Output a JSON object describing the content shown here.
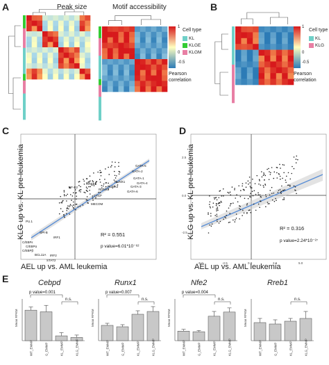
{
  "panels": {
    "A": "A",
    "B": "B",
    "C": "C",
    "D": "D",
    "E": "E"
  },
  "panel_a": {
    "titles": [
      "Peak size",
      "Motif accessibility"
    ]
  },
  "legend_a": {
    "scale_ticks": [
      "1",
      "0",
      "-0.5"
    ],
    "scale_label_1": "Pearson",
    "scale_label_2": "correlation",
    "cell_type_title": "Cell type",
    "cell_types": [
      {
        "label": "KL",
        "color": "#6fd0c8"
      },
      {
        "label": "KLGE",
        "color": "#33cc33"
      },
      {
        "label": "KLGM",
        "color": "#e87fa4"
      }
    ]
  },
  "legend_b": {
    "scale_ticks": [
      "1",
      "0",
      "-0.5"
    ],
    "scale_label_1": "Pearson",
    "scale_label_2": "correlation",
    "cell_type_title": "Cell type",
    "cell_types": [
      {
        "label": "KL",
        "color": "#6fd0c8"
      },
      {
        "label": "KLG",
        "color": "#e87fa4"
      }
    ]
  },
  "chart_data": [
    {
      "panel": "C",
      "type": "scatter",
      "xlabel": "AEL up vs. AML leukemia",
      "ylabel": "KLG up vs. KL pre-leukemia",
      "point_labels": [
        "GATA-5",
        "GATA-2",
        "GATA-1",
        "RUNX1",
        "GATA-4",
        "RUNX2",
        "GATA-3",
        "RUNX3",
        "GATA-6",
        "RREB1",
        "NF-E2",
        "CTCF",
        "MECOM",
        "PU.1",
        "SPI-B",
        "IRF1",
        "C/EBPε",
        "C/EBPα",
        "C/EBPβ",
        "BCL11A",
        "IRF2",
        "STAT2",
        "NFY"
      ],
      "r2": "R² = 0.551",
      "pvalue": "p value=6.01*10⁻⁶²"
    },
    {
      "panel": "D",
      "type": "scatter",
      "xlabel": "AEL up vs. AML leukemia",
      "ylabel": "KLG up vs. KL pre-leukemia",
      "x_ticks": [
        "-5.0",
        "-2.5",
        "0.0",
        "2.5",
        "5.0"
      ],
      "y_ticks": [
        "2.5",
        "0.0",
        "-2.5"
      ],
      "r2": "R² = 0.316",
      "pvalue": "p value=2.24*10⁻²⁷"
    },
    {
      "panel": "E",
      "type": "bar",
      "ylabel": "Mean RPKM",
      "categories": [
        "WT_EMMP",
        "G_EMMP",
        "KL_EMMP",
        "KLG_EMMP"
      ],
      "charts": [
        {
          "gene": "Cebpd",
          "values": [
            19,
            18,
            3,
            2
          ],
          "errors": [
            2,
            4,
            2,
            1.5
          ],
          "ymax": 26,
          "ann1": "p value=0.001",
          "ann2": "n.s."
        },
        {
          "gene": "Runx1",
          "values": [
            2.2,
            2.0,
            3.8,
            4.2
          ],
          "errors": [
            0.3,
            0.3,
            0.5,
            0.7
          ],
          "ymax": 6,
          "ann1": "p value=0.007",
          "ann2": "n.s."
        },
        {
          "gene": "Nfe2",
          "values": [
            1.6,
            1.5,
            4.1,
            4.8
          ],
          "errors": [
            0.3,
            0.2,
            0.8,
            0.7
          ],
          "ymax": 7,
          "ann1": "p value=0.004",
          "ann2": "n.s."
        },
        {
          "gene": "Rreb1",
          "values": [
            1.3,
            1.2,
            1.4,
            1.6
          ],
          "errors": [
            0.3,
            0.3,
            0.2,
            0.5
          ],
          "ymax": 3,
          "ann1": "",
          "ann2": "n.s."
        }
      ]
    }
  ]
}
